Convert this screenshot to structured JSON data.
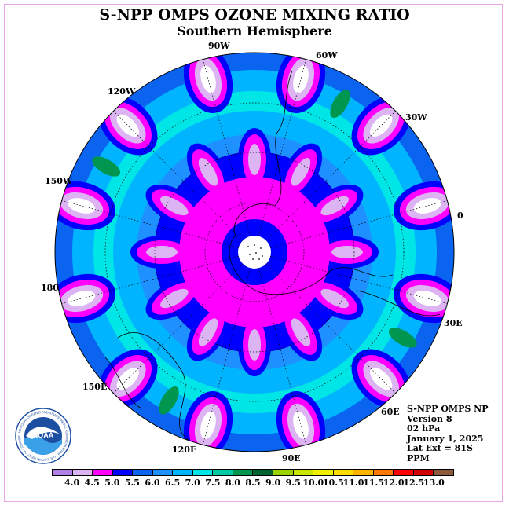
{
  "header": {
    "title": "S-NPP OMPS OZONE MIXING RATIO",
    "subtitle": "Southern Hemisphere"
  },
  "map": {
    "projection": "south-polar-stereographic",
    "longitude_labels": [
      "90W",
      "60W",
      "120W",
      "30W",
      "150W",
      "0",
      "180",
      "30E",
      "150E",
      "60E",
      "120E",
      "90E"
    ],
    "petals": 12,
    "center_fill": "white"
  },
  "info": {
    "lines": [
      "S-NPP OMPS NP",
      "Version 8",
      "02 hPa",
      "January 1, 2025",
      "Lat Ext = 81S",
      "PPM"
    ]
  },
  "colorbar": {
    "colors": [
      "#b27fe8",
      "#dcb4f3",
      "#ff00ff",
      "#0000ff",
      "#0a64f0",
      "#1e90ff",
      "#00b4ff",
      "#00e6e6",
      "#00c8a0",
      "#009650",
      "#006432",
      "#9bd200",
      "#c8e600",
      "#f0f000",
      "#ffdc00",
      "#ffb400",
      "#ff7800",
      "#ff0000",
      "#d20000",
      "#8c5a3c"
    ],
    "ticks": [
      "4.0",
      "4.5",
      "5.0",
      "5.5",
      "6.0",
      "6.5",
      "7.0",
      "7.5",
      "8.0",
      "8.5",
      "9.0",
      "9.5",
      "10.0",
      "10.5",
      "11.0",
      "11.5",
      "12.0",
      "12.5",
      "13.0"
    ]
  },
  "logo": {
    "text": "NOAA",
    "ring_text": "NATIONAL OCEANIC AND ATMOSPHERIC ADMINISTRATION · U.S. DEPARTMENT OF COMMERCE"
  }
}
